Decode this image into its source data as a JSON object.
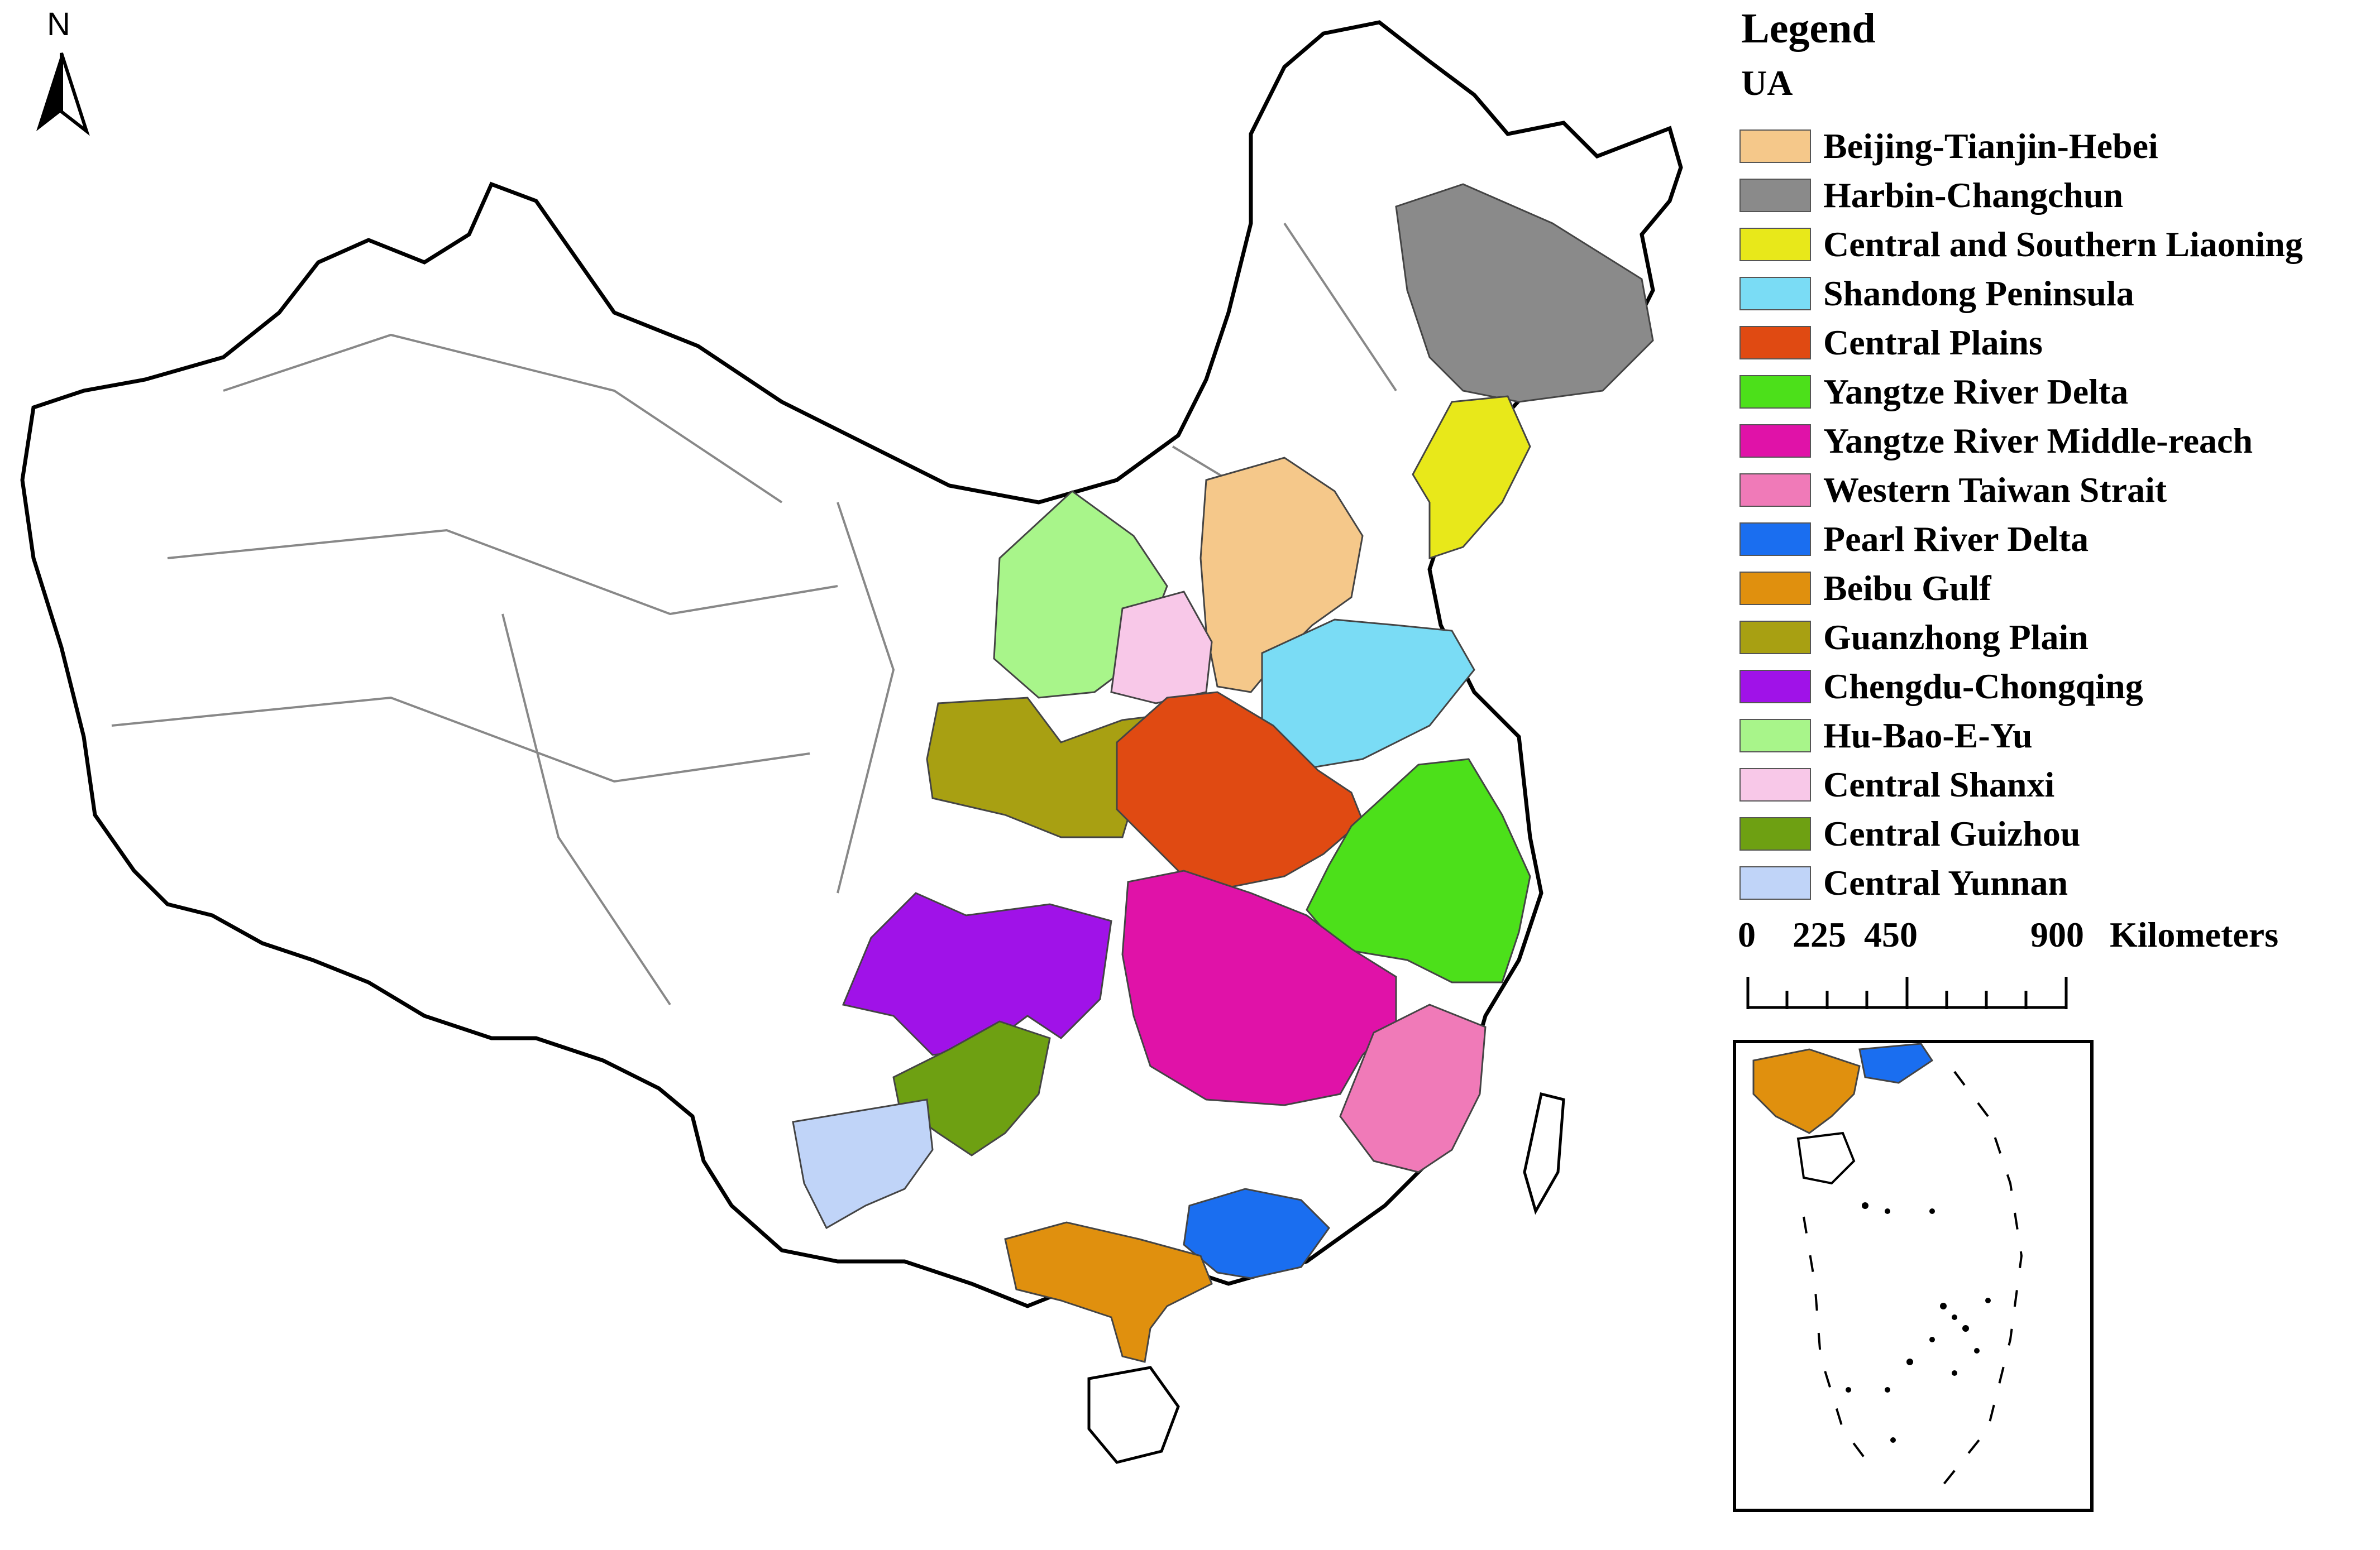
{
  "north_arrow": {
    "label": "N",
    "icon": "north-arrow-icon"
  },
  "legend": {
    "title": "Legend",
    "subtitle": "UA",
    "items": [
      {
        "label": "Beijing-Tianjin-Hebei",
        "color": "#F5C88A"
      },
      {
        "label": "Harbin-Changchun",
        "color": "#8A8A8A"
      },
      {
        "label": "Central and Southern Liaoning",
        "color": "#E8E81A"
      },
      {
        "label": "Shandong Peninsula",
        "color": "#7ADCF5"
      },
      {
        "label": "Central Plains",
        "color": "#E04A12"
      },
      {
        "label": "Yangtze River Delta",
        "color": "#4CE01A"
      },
      {
        "label": "Yangtze River Middle-reach",
        "color": "#E012A8"
      },
      {
        "label": "Western Taiwan Strait",
        "color": "#F07AB8"
      },
      {
        "label": "Pearl River Delta",
        "color": "#1A6EF0"
      },
      {
        "label": "Beibu Gulf",
        "color": "#E0900E"
      },
      {
        "label": "Guanzhong Plain",
        "color": "#A8A012"
      },
      {
        "label": "Chengdu-Chongqing",
        "color": "#A012E8"
      },
      {
        "label": "Hu-Bao-E-Yu",
        "color": "#A8F58A"
      },
      {
        "label": "Central Shanxi",
        "color": "#F8C8E8"
      },
      {
        "label": "Central Guizhou",
        "color": "#6EA012"
      },
      {
        "label": "Central Yunnan",
        "color": "#C0D4F8"
      }
    ]
  },
  "scale_bar": {
    "ticks": [
      "0",
      "225",
      "450",
      "900"
    ],
    "unit": "Kilometers"
  },
  "inset": {
    "label": ""
  }
}
